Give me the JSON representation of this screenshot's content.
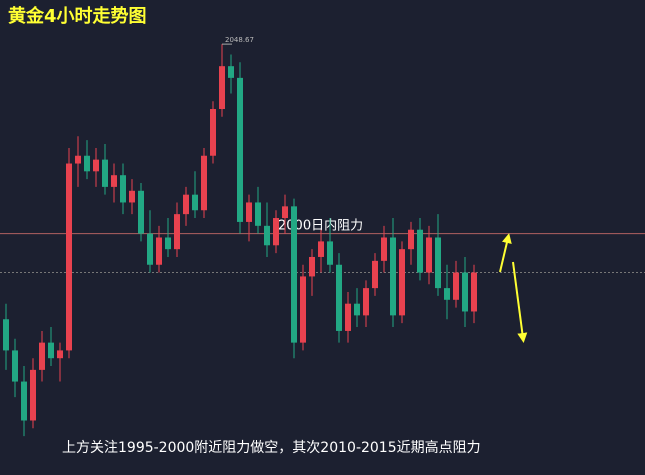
{
  "chart_data": {
    "type": "candlestick",
    "title": "黄金4小时走势图",
    "caption": "上方关注1995-2000附近阻力做空，其次2010-2015近期高点阻力",
    "resistance": {
      "value": 2000,
      "label": "2000日内阻力"
    },
    "last_price": 1990,
    "up_color": "#e8424f",
    "down_color": "#22a884",
    "ylim": [
      1938,
      2060
    ],
    "ohlc": [
      [
        1978,
        1982,
        1965,
        1970
      ],
      [
        1970,
        1973,
        1958,
        1962
      ],
      [
        1962,
        1966,
        1948,
        1952
      ],
      [
        1952,
        1968,
        1950,
        1965
      ],
      [
        1965,
        1975,
        1962,
        1972
      ],
      [
        1972,
        1976,
        1966,
        1968
      ],
      [
        1968,
        1972,
        1962,
        1970
      ],
      [
        1970,
        2022,
        1968,
        2018
      ],
      [
        2018,
        2025,
        2012,
        2020
      ],
      [
        2020,
        2024,
        2014,
        2016
      ],
      [
        2016,
        2022,
        2012,
        2019
      ],
      [
        2019,
        2023,
        2010,
        2012
      ],
      [
        2012,
        2018,
        2008,
        2015
      ],
      [
        2015,
        2018,
        2005,
        2008
      ],
      [
        2008,
        2014,
        2005,
        2011
      ],
      [
        2011,
        2013,
        1998,
        2000
      ],
      [
        2000,
        2006,
        1990,
        1992
      ],
      [
        1992,
        2002,
        1990,
        1999
      ],
      [
        1999,
        2004,
        1994,
        1996
      ],
      [
        1996,
        2008,
        1994,
        2005
      ],
      [
        2005,
        2012,
        2002,
        2010
      ],
      [
        2010,
        2016,
        2004,
        2006
      ],
      [
        2006,
        2022,
        2004,
        2020
      ],
      [
        2020,
        2034,
        2018,
        2032
      ],
      [
        2032,
        2048.67,
        2030,
        2043
      ],
      [
        2043,
        2046,
        2036,
        2040
      ],
      [
        2040,
        2044,
        2000,
        2003
      ],
      [
        2003,
        2010,
        1998,
        2008
      ],
      [
        2008,
        2012,
        2000,
        2002
      ],
      [
        2002,
        2008,
        1994,
        1997
      ],
      [
        1997,
        2006,
        1995,
        2004
      ],
      [
        2004,
        2010,
        2000,
        2007
      ],
      [
        2007,
        2009,
        1968,
        1972
      ],
      [
        1972,
        1992,
        1970,
        1989
      ],
      [
        1989,
        1996,
        1984,
        1994
      ],
      [
        1994,
        2001,
        1990,
        1998
      ],
      [
        1998,
        2004,
        1990,
        1992
      ],
      [
        1992,
        1995,
        1972,
        1975
      ],
      [
        1975,
        1985,
        1972,
        1982
      ],
      [
        1982,
        1986,
        1976,
        1979
      ],
      [
        1979,
        1988,
        1976,
        1986
      ],
      [
        1986,
        1995,
        1984,
        1993
      ],
      [
        1993,
        2002,
        1990,
        1999
      ],
      [
        1999,
        2004,
        1976,
        1979
      ],
      [
        1979,
        1998,
        1977,
        1996
      ],
      [
        1996,
        2003,
        1992,
        2001
      ],
      [
        2001,
        2004,
        1988,
        1990
      ],
      [
        1990,
        2002,
        1987,
        1999
      ],
      [
        1999,
        2005,
        1984,
        1986
      ],
      [
        1986,
        1992,
        1978,
        1983
      ],
      [
        1983,
        1993,
        1981,
        1990
      ],
      [
        1990,
        1994,
        1976,
        1980
      ],
      [
        1980,
        1992,
        1977,
        1990
      ]
    ]
  }
}
